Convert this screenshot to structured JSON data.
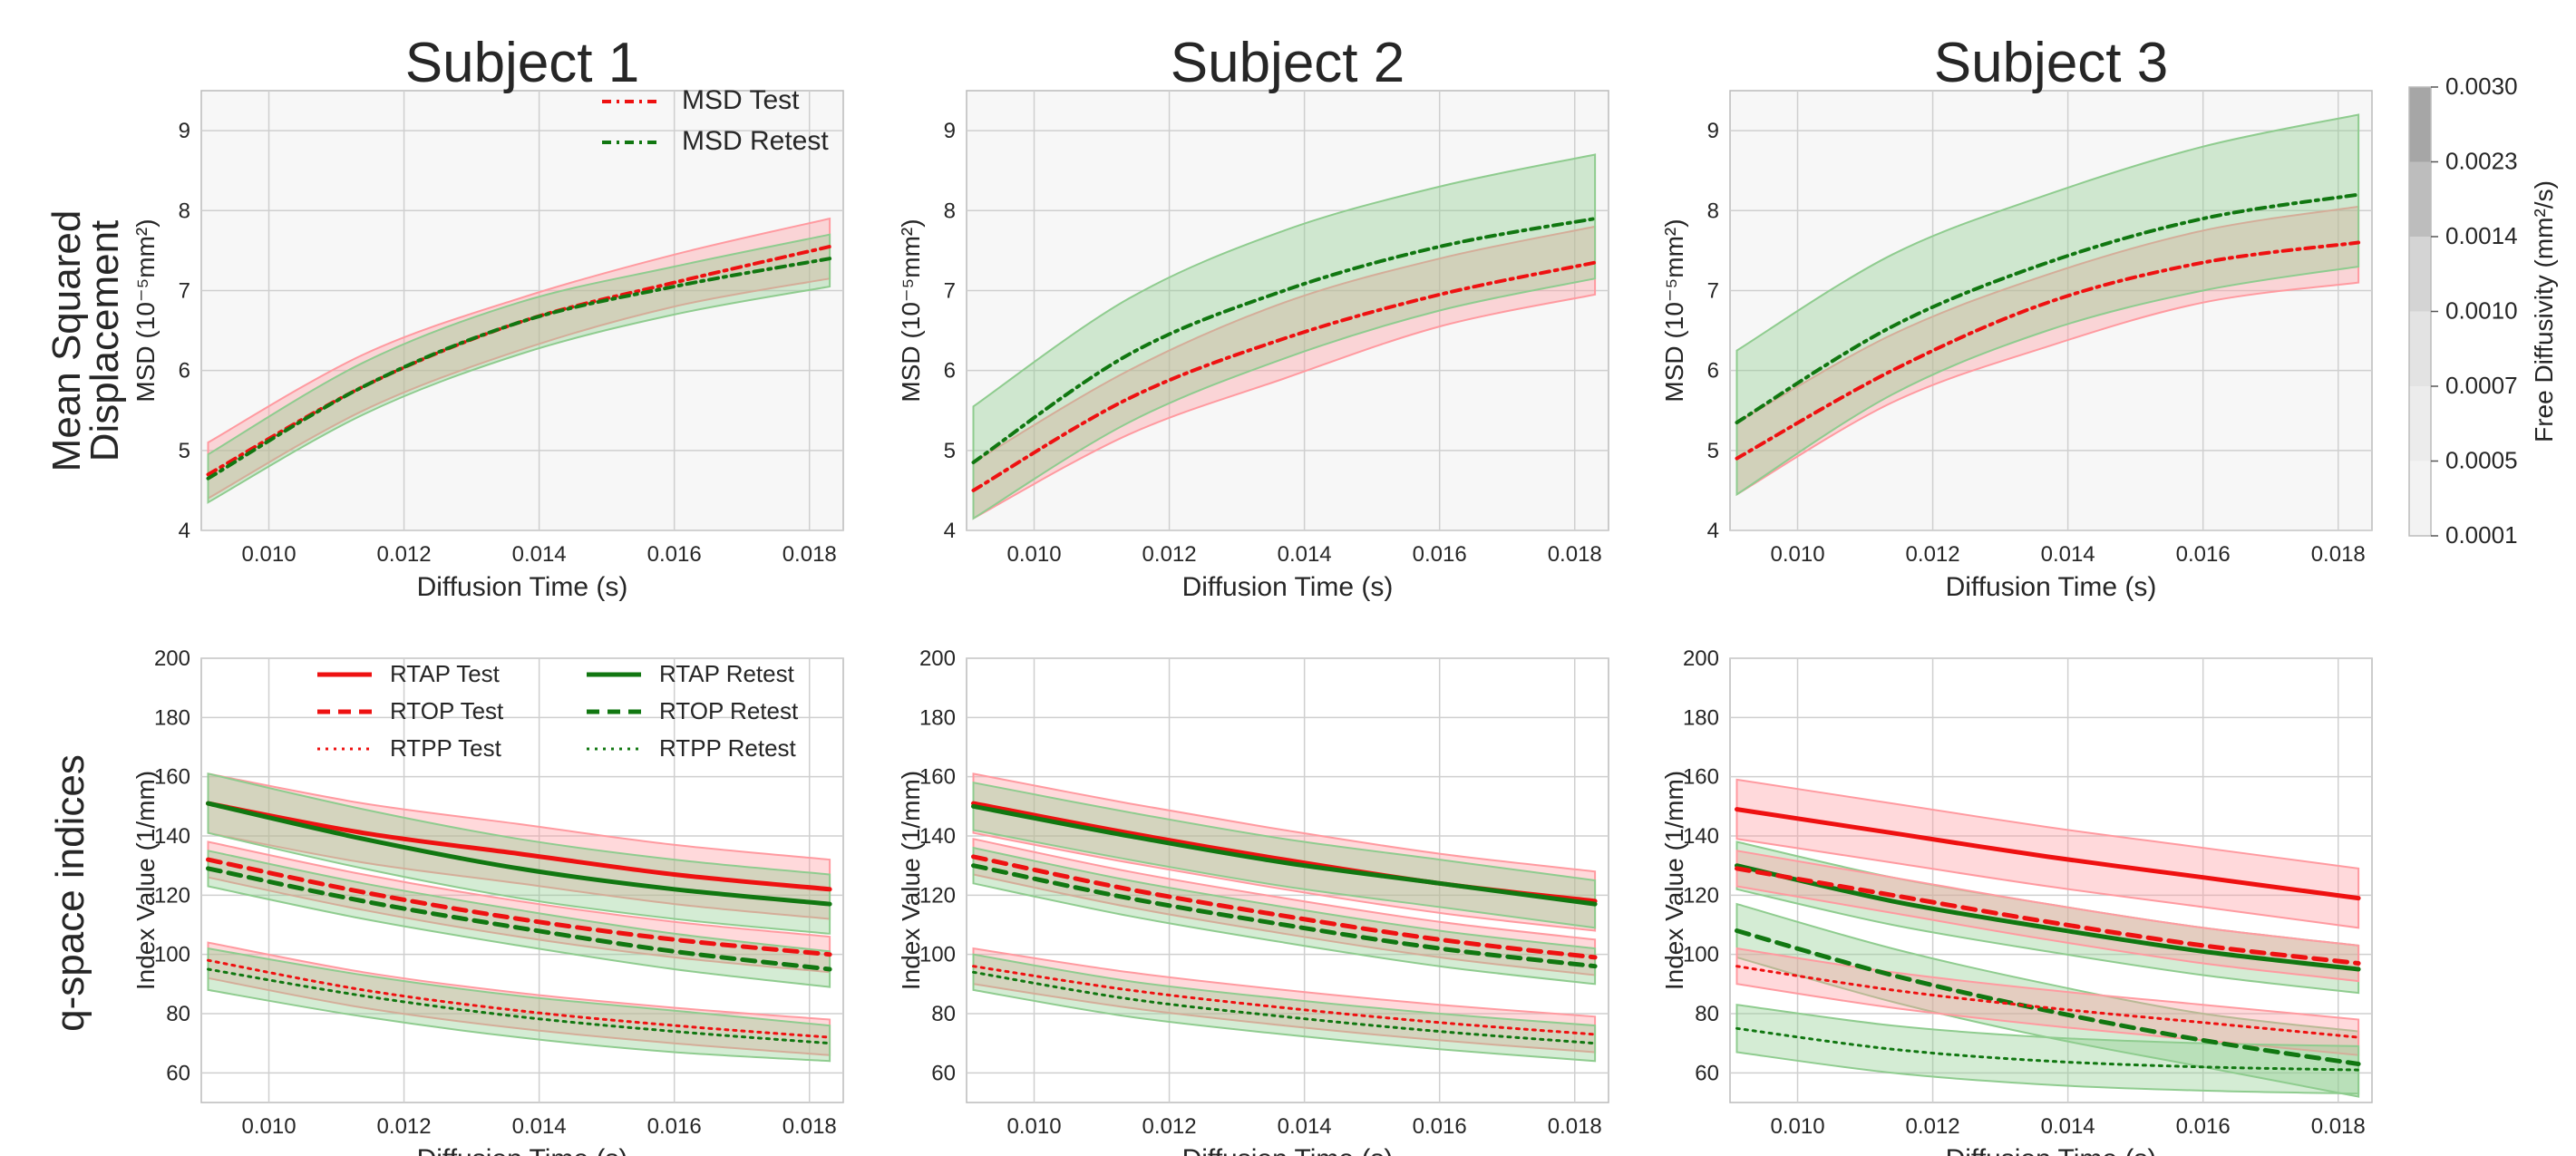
{
  "row_labels": [
    {
      "line1": "Mean Squared",
      "line2": "Displacement"
    },
    {
      "line1": "q-space indices",
      "line2": ""
    }
  ],
  "colorbar": {
    "label": "Free Diffusivity (mm²/s)",
    "ticks": [
      "0.0030",
      "0.0023",
      "0.0014",
      "0.0010",
      "0.0007",
      "0.0005",
      "0.0001"
    ],
    "colors": [
      "#a6a6a6",
      "#bdbdbd",
      "#d4d4d4",
      "#e3e3e3",
      "#ececec",
      "#f3f3f3"
    ]
  },
  "colors": {
    "test": "#ee1111",
    "retest": "#117711",
    "test_band": "#ff9aa0",
    "retest_band": "#8fcc8f",
    "grid": "#cfcfcf",
    "axes_bg": "#eaeaf0"
  },
  "chart_data": [
    {
      "type": "line",
      "panel": "msd-1",
      "title": "Subject 1",
      "xlabel": "Diffusion Time (s)",
      "ylabel": "MSD (10⁻⁵mm²)",
      "xlim": [
        0.009,
        0.0185
      ],
      "ylim": [
        4,
        9.5
      ],
      "xticks": [
        "0.010",
        "0.012",
        "0.014",
        "0.016",
        "0.018"
      ],
      "yticks": [
        "4",
        "5",
        "6",
        "7",
        "8",
        "9"
      ],
      "x": [
        0.0091,
        0.0114,
        0.0137,
        0.016,
        0.0183
      ],
      "legend": [
        "MSD Test",
        "MSD Retest"
      ],
      "series": [
        {
          "name": "MSD Test",
          "group": "test",
          "style": "dashdot",
          "values": [
            4.7,
            5.8,
            6.6,
            7.1,
            7.55
          ],
          "lower": [
            4.4,
            5.5,
            6.25,
            6.8,
            7.15
          ],
          "upper": [
            5.1,
            6.2,
            6.9,
            7.45,
            7.9
          ]
        },
        {
          "name": "MSD Retest",
          "group": "retest",
          "style": "dashdot",
          "values": [
            4.65,
            5.8,
            6.6,
            7.05,
            7.4
          ],
          "lower": [
            4.35,
            5.45,
            6.2,
            6.7,
            7.05
          ],
          "upper": [
            4.95,
            6.1,
            6.85,
            7.3,
            7.7
          ]
        }
      ]
    },
    {
      "type": "line",
      "panel": "msd-2",
      "title": "Subject 2",
      "xlabel": "Diffusion Time (s)",
      "ylabel": "MSD (10⁻⁵mm²)",
      "xlim": [
        0.009,
        0.0185
      ],
      "ylim": [
        4,
        9.5
      ],
      "xticks": [
        "0.010",
        "0.012",
        "0.014",
        "0.016",
        "0.018"
      ],
      "yticks": [
        "4",
        "5",
        "6",
        "7",
        "8",
        "9"
      ],
      "x": [
        0.0091,
        0.0114,
        0.0137,
        0.016,
        0.0183
      ],
      "series": [
        {
          "name": "MSD Test",
          "group": "test",
          "style": "dashdot",
          "values": [
            4.5,
            5.65,
            6.4,
            6.95,
            7.35
          ],
          "lower": [
            4.15,
            5.2,
            5.9,
            6.55,
            6.95
          ],
          "upper": [
            4.85,
            6.0,
            6.85,
            7.4,
            7.8
          ]
        },
        {
          "name": "MSD Retest",
          "group": "retest",
          "style": "dashdot",
          "values": [
            4.85,
            6.2,
            7.0,
            7.55,
            7.9
          ],
          "lower": [
            4.15,
            5.35,
            6.15,
            6.75,
            7.15
          ],
          "upper": [
            5.55,
            6.9,
            7.75,
            8.3,
            8.7
          ]
        }
      ]
    },
    {
      "type": "line",
      "panel": "msd-3",
      "title": "Subject 3",
      "xlabel": "Diffusion Time (s)",
      "ylabel": "MSD (10⁻⁵mm²)",
      "xlim": [
        0.009,
        0.0185
      ],
      "ylim": [
        4,
        9.5
      ],
      "xticks": [
        "0.010",
        "0.012",
        "0.014",
        "0.016",
        "0.018"
      ],
      "yticks": [
        "4",
        "5",
        "6",
        "7",
        "8",
        "9"
      ],
      "x": [
        0.0091,
        0.0114,
        0.0137,
        0.016,
        0.0183
      ],
      "series": [
        {
          "name": "MSD Test",
          "group": "test",
          "style": "dashdot",
          "values": [
            4.9,
            6.0,
            6.85,
            7.35,
            7.6
          ],
          "lower": [
            4.45,
            5.6,
            6.3,
            6.85,
            7.1
          ],
          "upper": [
            5.35,
            6.45,
            7.2,
            7.75,
            8.05
          ]
        },
        {
          "name": "MSD Retest",
          "group": "retest",
          "style": "dashdot",
          "values": [
            5.35,
            6.55,
            7.35,
            7.9,
            8.2
          ],
          "lower": [
            4.45,
            5.7,
            6.5,
            7.0,
            7.3
          ],
          "upper": [
            6.25,
            7.45,
            8.2,
            8.8,
            9.2
          ]
        }
      ]
    },
    {
      "type": "line",
      "panel": "q-1",
      "xlabel": "Diffusion Time (s)",
      "ylabel": "Index Value (1/mm)",
      "xlim": [
        0.009,
        0.0185
      ],
      "ylim": [
        50,
        200
      ],
      "xticks": [
        "0.010",
        "0.012",
        "0.014",
        "0.016",
        "0.018"
      ],
      "yticks": [
        "60",
        "80",
        "100",
        "120",
        "140",
        "160",
        "180",
        "200"
      ],
      "x": [
        0.0091,
        0.0114,
        0.0137,
        0.016,
        0.0183
      ],
      "legend": [
        "RTAP Test",
        "RTAP Retest",
        "RTOP Test",
        "RTOP Retest",
        "RTPP Test",
        "RTPP Retest"
      ],
      "series": [
        {
          "name": "RTAP Test",
          "group": "test",
          "style": "solid",
          "values": [
            151,
            141,
            134,
            127,
            122
          ],
          "lower": [
            141,
            131,
            124,
            117,
            112
          ],
          "upper": [
            161,
            151,
            144,
            137,
            132
          ]
        },
        {
          "name": "RTAP Retest",
          "group": "retest",
          "style": "solid",
          "values": [
            151,
            139,
            129,
            122,
            117
          ],
          "lower": [
            141,
            129,
            119,
            112,
            107
          ],
          "upper": [
            161,
            149,
            139,
            132,
            127
          ]
        },
        {
          "name": "RTOP Test",
          "group": "test",
          "style": "dashed",
          "values": [
            132,
            121,
            112,
            105,
            100
          ],
          "lower": [
            126,
            115,
            106,
            99,
            94
          ],
          "upper": [
            138,
            127,
            118,
            111,
            106
          ]
        },
        {
          "name": "RTOP Retest",
          "group": "retest",
          "style": "dashed",
          "values": [
            129,
            118,
            109,
            101,
            95
          ],
          "lower": [
            123,
            112,
            103,
            95,
            89
          ],
          "upper": [
            135,
            124,
            115,
            107,
            101
          ]
        },
        {
          "name": "RTPP Test",
          "group": "test",
          "style": "dotted",
          "values": [
            98,
            88,
            81,
            76,
            72
          ],
          "lower": [
            92,
            82,
            75,
            70,
            66
          ],
          "upper": [
            104,
            94,
            87,
            82,
            78
          ]
        },
        {
          "name": "RTPP Retest",
          "group": "retest",
          "style": "dotted",
          "values": [
            95,
            86,
            79,
            74,
            70
          ],
          "lower": [
            88,
            79,
            72,
            67,
            64
          ],
          "upper": [
            102,
            93,
            86,
            81,
            76
          ]
        }
      ]
    },
    {
      "type": "line",
      "panel": "q-2",
      "xlabel": "Diffusion Time (s)",
      "ylabel": "Index Value (1/mm)",
      "xlim": [
        0.009,
        0.0185
      ],
      "ylim": [
        50,
        200
      ],
      "xticks": [
        "0.010",
        "0.012",
        "0.014",
        "0.016",
        "0.018"
      ],
      "yticks": [
        "60",
        "80",
        "100",
        "120",
        "140",
        "160",
        "180",
        "200"
      ],
      "x": [
        0.0091,
        0.0114,
        0.0137,
        0.016,
        0.0183
      ],
      "series": [
        {
          "name": "RTAP Test",
          "group": "test",
          "style": "solid",
          "values": [
            151,
            141,
            132,
            124,
            118
          ],
          "lower": [
            141,
            131,
            122,
            114,
            108
          ],
          "upper": [
            161,
            151,
            142,
            134,
            128
          ]
        },
        {
          "name": "RTAP Retest",
          "group": "retest",
          "style": "solid",
          "values": [
            150,
            140,
            131,
            124,
            117
          ],
          "lower": [
            142,
            132,
            123,
            116,
            109
          ],
          "upper": [
            158,
            148,
            139,
            132,
            125
          ]
        },
        {
          "name": "RTOP Test",
          "group": "test",
          "style": "dashed",
          "values": [
            133,
            122,
            113,
            105,
            99
          ],
          "lower": [
            127,
            116,
            107,
            99,
            93
          ],
          "upper": [
            139,
            128,
            119,
            111,
            105
          ]
        },
        {
          "name": "RTOP Retest",
          "group": "retest",
          "style": "dashed",
          "values": [
            130,
            119,
            110,
            102,
            96
          ],
          "lower": [
            124,
            113,
            104,
            96,
            90
          ],
          "upper": [
            136,
            125,
            116,
            108,
            102
          ]
        },
        {
          "name": "RTPP Test",
          "group": "test",
          "style": "dotted",
          "values": [
            96,
            88,
            82,
            77,
            73
          ],
          "lower": [
            90,
            82,
            76,
            71,
            67
          ],
          "upper": [
            102,
            94,
            88,
            83,
            79
          ]
        },
        {
          "name": "RTPP Retest",
          "group": "retest",
          "style": "dotted",
          "values": [
            94,
            85,
            79,
            74,
            70
          ],
          "lower": [
            88,
            79,
            73,
            68,
            64
          ],
          "upper": [
            100,
            91,
            85,
            80,
            76
          ]
        }
      ]
    },
    {
      "type": "line",
      "panel": "q-3",
      "xlabel": "Diffusion Time (s)",
      "ylabel": "Index Value (1/mm)",
      "xlim": [
        0.009,
        0.0185
      ],
      "ylim": [
        50,
        200
      ],
      "xticks": [
        "0.010",
        "0.012",
        "0.014",
        "0.016",
        "0.018"
      ],
      "yticks": [
        "60",
        "80",
        "100",
        "120",
        "140",
        "160",
        "180",
        "200"
      ],
      "x": [
        0.0091,
        0.0114,
        0.0137,
        0.016,
        0.0183
      ],
      "series": [
        {
          "name": "RTAP Test",
          "group": "test",
          "style": "solid",
          "values": [
            149,
            141,
            133,
            126,
            119
          ],
          "lower": [
            139,
            131,
            123,
            116,
            109
          ],
          "upper": [
            159,
            151,
            143,
            136,
            129
          ]
        },
        {
          "name": "RTAP Retest",
          "group": "retest",
          "style": "solid",
          "values": [
            130,
            118,
            109,
            101,
            95
          ],
          "lower": [
            122,
            110,
            101,
            93,
            87
          ],
          "upper": [
            138,
            126,
            117,
            109,
            103
          ]
        },
        {
          "name": "RTOP Test",
          "group": "test",
          "style": "dashed",
          "values": [
            129,
            120,
            111,
            103,
            97
          ],
          "lower": [
            123,
            114,
            105,
            97,
            91
          ],
          "upper": [
            135,
            126,
            117,
            109,
            103
          ]
        },
        {
          "name": "RTOP Retest",
          "group": "retest",
          "style": "dashed",
          "values": [
            108,
            93,
            81,
            71,
            63
          ],
          "lower": [
            99,
            84,
            72,
            62,
            52
          ],
          "upper": [
            117,
            102,
            90,
            80,
            74
          ]
        },
        {
          "name": "RTPP Test",
          "group": "test",
          "style": "dotted",
          "values": [
            96,
            88,
            82,
            77,
            72
          ],
          "lower": [
            90,
            82,
            76,
            71,
            66
          ],
          "upper": [
            102,
            94,
            88,
            83,
            78
          ]
        },
        {
          "name": "RTPP Retest",
          "group": "retest",
          "style": "dotted",
          "values": [
            75,
            68,
            64,
            62,
            61
          ],
          "lower": [
            67,
            60,
            56,
            54,
            53
          ],
          "upper": [
            83,
            76,
            72,
            70,
            69
          ]
        }
      ]
    }
  ]
}
